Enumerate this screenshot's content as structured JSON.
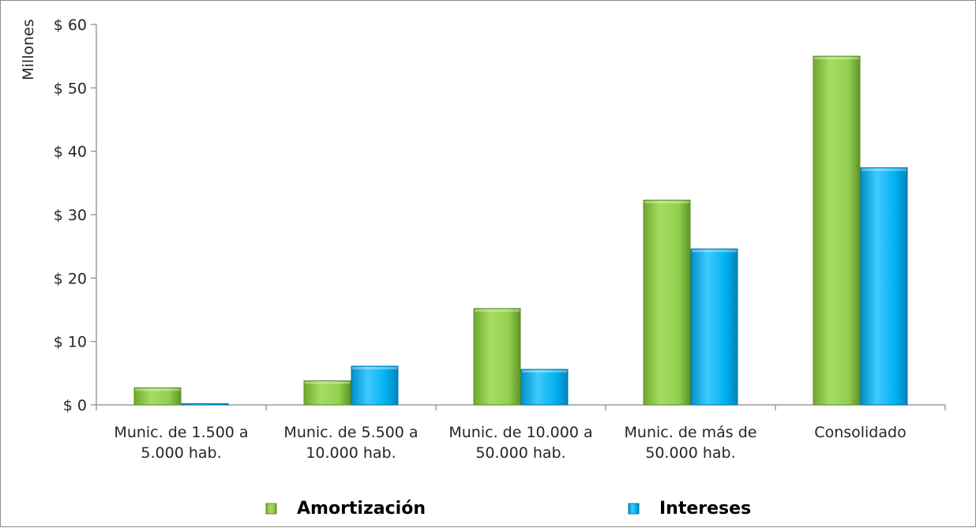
{
  "chart_data": {
    "type": "bar",
    "ylabel": "Millones",
    "ylim": [
      0,
      60
    ],
    "ytick_values": [
      0,
      10,
      20,
      30,
      40,
      50,
      60
    ],
    "ytick_labels": [
      "$ 0",
      "$ 10",
      "$ 20",
      "$ 30",
      "$ 40",
      "$ 50",
      "$ 60"
    ],
    "categories": [
      [
        "Munic. de 1.500 a",
        "5.000 hab."
      ],
      [
        "Munic. de 5.500 a",
        "10.000 hab."
      ],
      [
        "Munic. de 10.000 a",
        "50.000 hab."
      ],
      [
        "Munic. de más de",
        "50.000 hab."
      ],
      [
        "Consolidado"
      ]
    ],
    "series": [
      {
        "name": "Amortización",
        "color": "#92d050",
        "values": [
          2.7,
          3.8,
          15.2,
          32.3,
          55.0
        ]
      },
      {
        "name": "Intereses",
        "color": "#00b0f0",
        "values": [
          0.2,
          6.1,
          5.6,
          24.6,
          37.4
        ]
      }
    ],
    "grid": false,
    "legend_position": "bottom"
  }
}
